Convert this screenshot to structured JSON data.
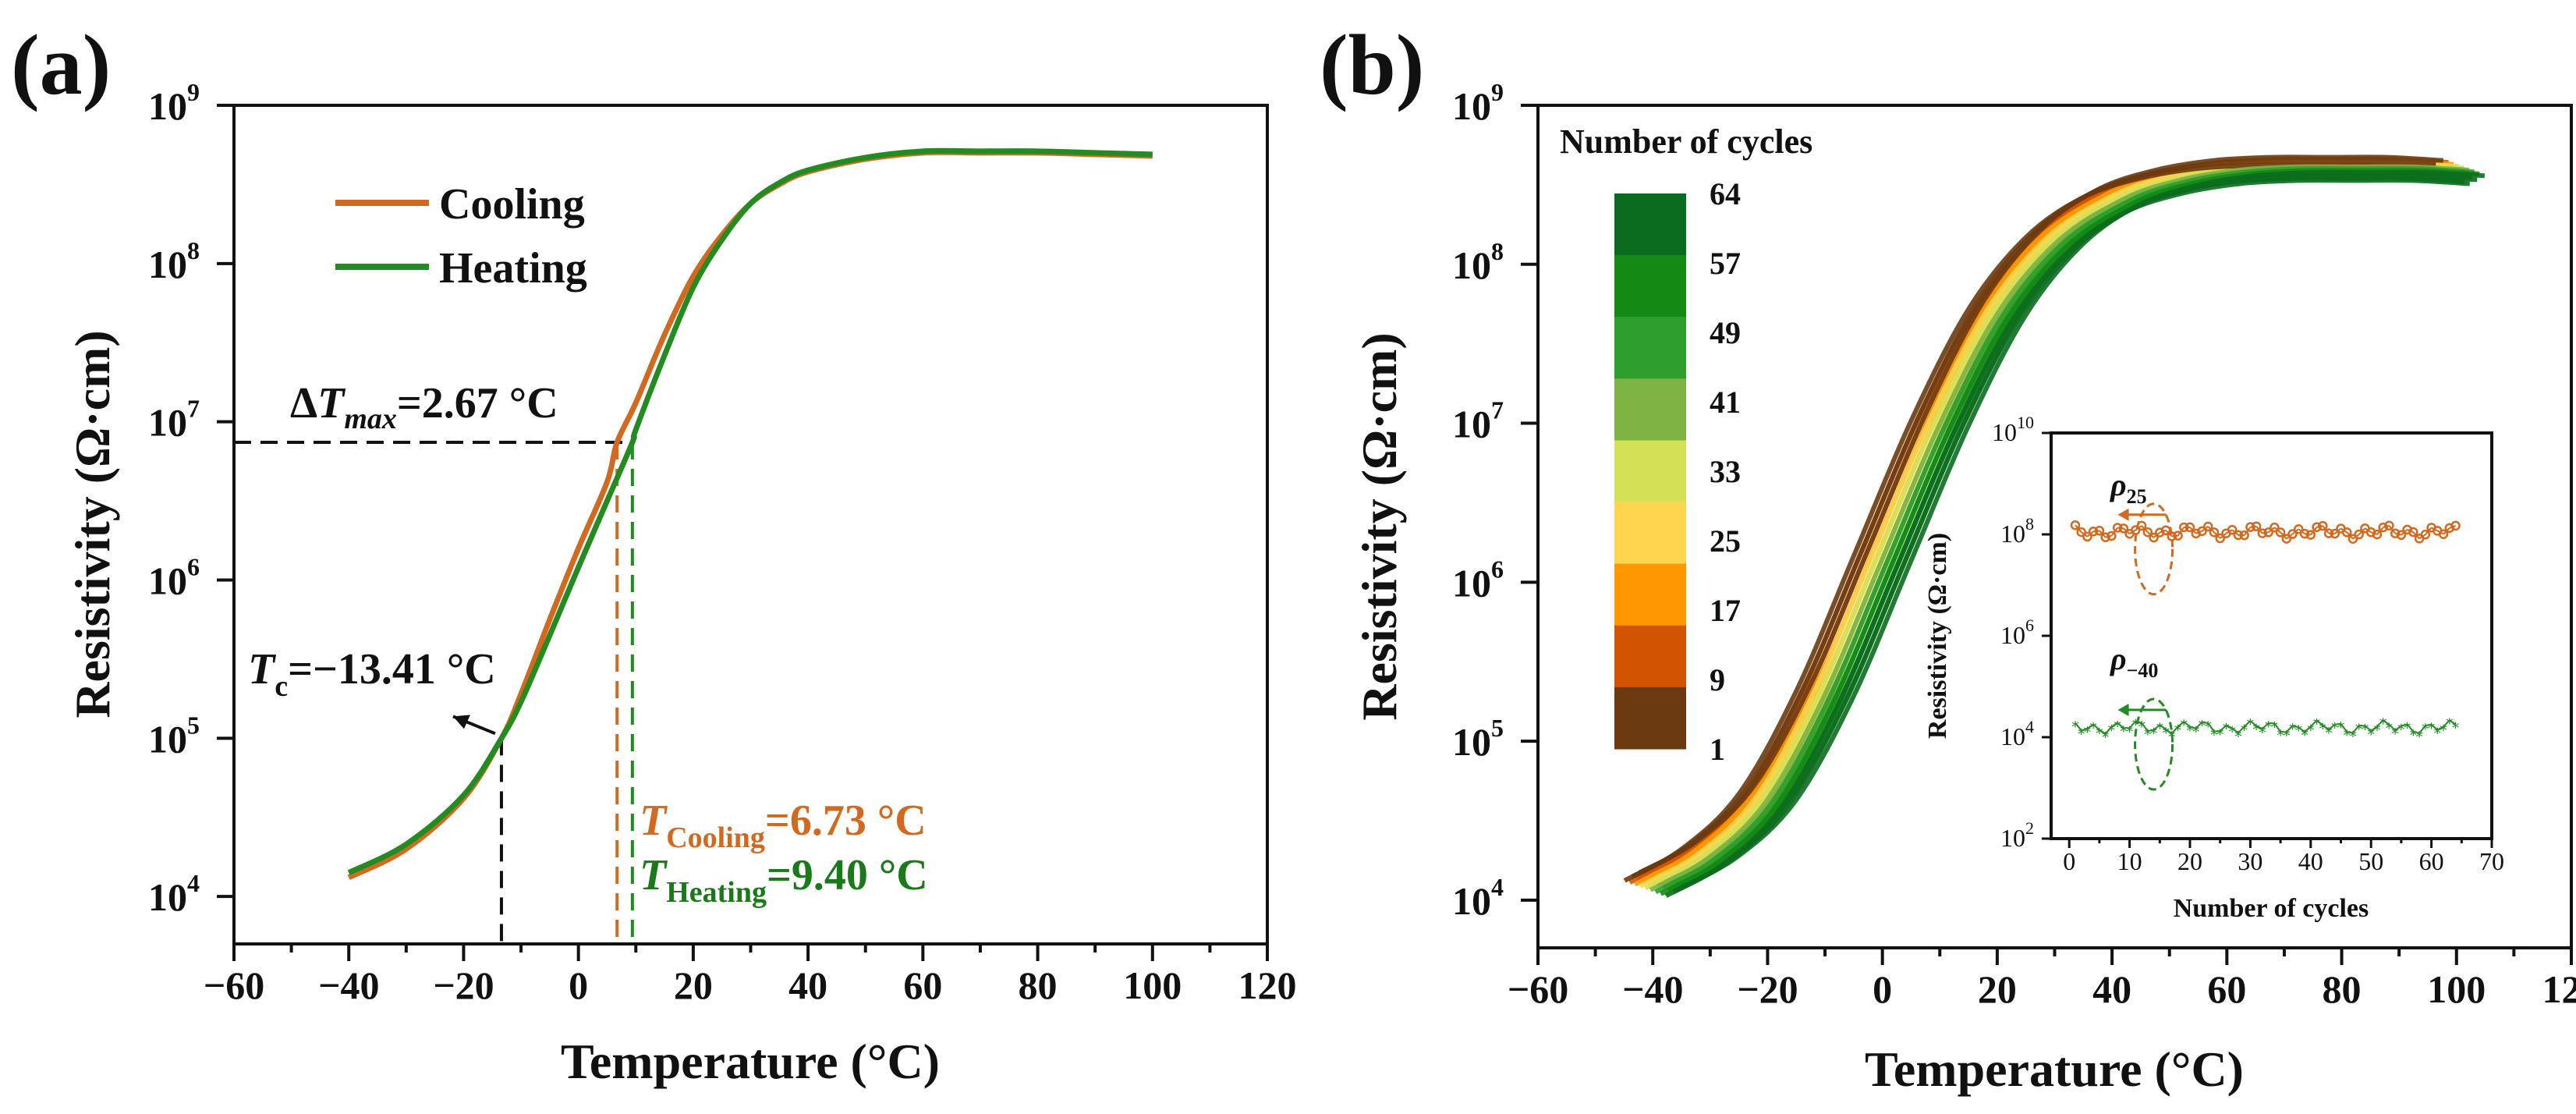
{
  "figure": {
    "panel_a_label": "(a)",
    "panel_b_label": "(b)"
  },
  "colors": {
    "cooling": "#D2691E",
    "heating": "#228B22",
    "cooling_text": "#D2691E",
    "heating_text": "#1a7a1a",
    "colorbar": [
      "#6B3A10",
      "#D35400",
      "#FF9800",
      "#FFD54F",
      "#D4E157",
      "#7CB342",
      "#2E9E2E",
      "#138A13",
      "#0B6B1E"
    ]
  },
  "chart_data": [
    {
      "id": "panel-a",
      "type": "line",
      "xlabel": "Temperature (°C)",
      "ylabel": "Resistivity (Ω·cm)",
      "xlim": [
        -60,
        120
      ],
      "ylim_log10": [
        3.7,
        9
      ],
      "xticks": [
        "−60",
        "−40",
        "−20",
        "0",
        "20",
        "40",
        "60",
        "80",
        "100",
        "120"
      ],
      "yticks": [
        {
          "base": "10",
          "exp": "4",
          "log": 4
        },
        {
          "base": "10",
          "exp": "5",
          "log": 5
        },
        {
          "base": "10",
          "exp": "6",
          "log": 6
        },
        {
          "base": "10",
          "exp": "7",
          "log": 7
        },
        {
          "base": "10",
          "exp": "8",
          "log": 8
        },
        {
          "base": "10",
          "exp": "9",
          "log": 9
        }
      ],
      "legend": [
        {
          "label": "Cooling",
          "series": "cooling"
        },
        {
          "label": "Heating",
          "series": "heating"
        }
      ],
      "series": [
        {
          "name": "Cooling",
          "x": [
            -40,
            -30,
            -20,
            -13.4,
            -10,
            -5,
            0,
            5,
            6.73,
            10,
            15,
            20,
            25,
            30,
            35,
            40,
            50,
            60,
            70,
            80,
            90,
            100
          ],
          "log_y": [
            4.12,
            4.3,
            4.62,
            5.0,
            5.28,
            5.75,
            6.2,
            6.62,
            6.87,
            7.12,
            7.55,
            7.92,
            8.18,
            8.38,
            8.5,
            8.58,
            8.66,
            8.7,
            8.7,
            8.7,
            8.69,
            8.68
          ]
        },
        {
          "name": "Heating",
          "x": [
            -40,
            -30,
            -20,
            -13.4,
            -10,
            -5,
            0,
            5,
            9.4,
            10,
            15,
            20,
            25,
            30,
            35,
            40,
            50,
            60,
            70,
            80,
            90,
            100
          ],
          "log_y": [
            4.15,
            4.33,
            4.64,
            5.0,
            5.23,
            5.65,
            6.08,
            6.5,
            6.87,
            6.95,
            7.42,
            7.85,
            8.15,
            8.38,
            8.51,
            8.59,
            8.67,
            8.71,
            8.71,
            8.71,
            8.7,
            8.69
          ]
        }
      ],
      "annotations": {
        "delta_t_main": "Δ",
        "delta_t_italic": "T",
        "delta_t_sub": "max",
        "delta_t_value": "=2.67 °C",
        "tc_main": "T",
        "tc_sub": "c",
        "tc_value": "=−13.41 °C",
        "tcool_main": "T",
        "tcool_sub": "Cooling",
        "tcool_value": "=6.73 °C",
        "theat_main": "T",
        "theat_sub": "Heating",
        "theat_value": "=9.40 °C",
        "tc_x": -13.41,
        "tcool_x": 6.73,
        "theat_x": 9.4,
        "delta_log_y": 6.87
      }
    },
    {
      "id": "panel-b",
      "type": "line",
      "xlabel": "Temperature (°C)",
      "ylabel": "Resistivity (Ω·cm)",
      "xlim": [
        -60,
        120
      ],
      "ylim_log10": [
        3.7,
        9
      ],
      "xticks": [
        "−60",
        "−40",
        "−20",
        "0",
        "20",
        "40",
        "60",
        "80",
        "100",
        "120"
      ],
      "yticks": [
        {
          "base": "10",
          "exp": "4",
          "log": 4
        },
        {
          "base": "10",
          "exp": "5",
          "log": 5
        },
        {
          "base": "10",
          "exp": "6",
          "log": 6
        },
        {
          "base": "10",
          "exp": "7",
          "log": 7
        },
        {
          "base": "10",
          "exp": "8",
          "log": 8
        },
        {
          "base": "10",
          "exp": "9",
          "log": 9
        }
      ],
      "colorbar_title": "Number of cycles",
      "colorbar_labels": [
        "64",
        "57",
        "49",
        "41",
        "33",
        "25",
        "17",
        "9",
        "1"
      ],
      "cycle_curves": {
        "x": [
          -40,
          -30,
          -20,
          -10,
          0,
          10,
          20,
          30,
          40,
          50,
          60,
          70,
          80,
          90,
          100
        ],
        "base_log_y": [
          4.1,
          4.3,
          4.65,
          5.3,
          6.15,
          7.0,
          7.7,
          8.15,
          8.4,
          8.52,
          8.58,
          8.6,
          8.6,
          8.6,
          8.58
        ],
        "shifts_c": [
          -4,
          -3,
          -2,
          -1,
          0,
          1,
          2,
          3,
          4
        ]
      }
    },
    {
      "id": "inset-b",
      "type": "scatter",
      "xlabel": "Number of cycles",
      "ylabel": "Resistivity (Ω·cm)",
      "xlim": [
        -3,
        70
      ],
      "ylim_log10": [
        2,
        10
      ],
      "xticks": [
        "0",
        "10",
        "20",
        "30",
        "40",
        "50",
        "60",
        "70"
      ],
      "yticks": [
        {
          "base": "10",
          "exp": "2",
          "log": 2
        },
        {
          "base": "10",
          "exp": "4",
          "log": 4
        },
        {
          "base": "10",
          "exp": "6",
          "log": 6
        },
        {
          "base": "10",
          "exp": "8",
          "log": 8
        },
        {
          "base": "10",
          "exp": "10",
          "log": 10
        }
      ],
      "series": [
        {
          "name": "ρ",
          "sub": "25",
          "mean_log": 8.05,
          "n": 64
        },
        {
          "name": "ρ",
          "sub": "−40",
          "mean_log": 4.2,
          "n": 64
        }
      ]
    }
  ]
}
